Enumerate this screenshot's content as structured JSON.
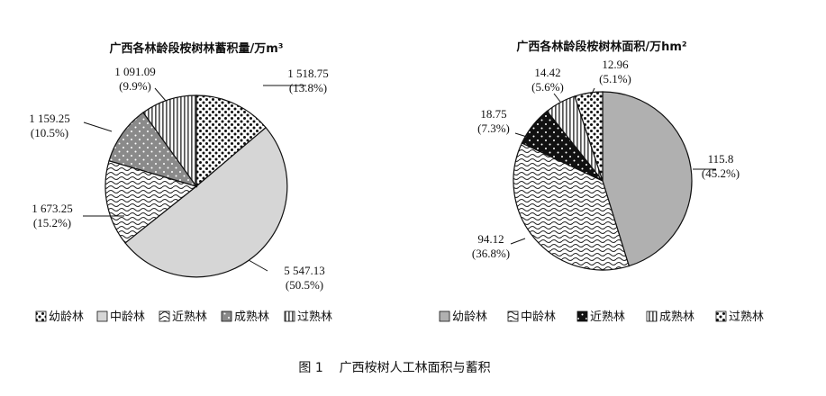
{
  "figure_caption": "图 1    广西桉树人工林面积与蓄积",
  "chart_data": [
    {
      "type": "pie",
      "title": "广西各林龄段桉树林蓄积量/万m³",
      "unit": "万m³",
      "legend_position": "bottom",
      "slices": [
        {
          "name": "幼龄林",
          "value": 1518.75,
          "value_label": "1 518.75",
          "percent_label": "(13.8%)",
          "color": "#ffffff",
          "pattern": "dots"
        },
        {
          "name": "中龄林",
          "value": 5547.13,
          "value_label": "5 547.13",
          "percent_label": "(50.5%)",
          "color": "#d6d6d6",
          "pattern": "solid"
        },
        {
          "name": "近熟林",
          "value": 1673.25,
          "value_label": "1 673.25",
          "percent_label": "(15.2%)",
          "color": "#ffffff",
          "pattern": "waves"
        },
        {
          "name": "成熟林",
          "value": 1159.25,
          "value_label": "1 159.25",
          "percent_label": "(10.5%)",
          "color": "#8a8a8a",
          "pattern": "dots-on-gray"
        },
        {
          "name": "过熟林",
          "value": 1091.09,
          "value_label": "1 091.09",
          "percent_label": "(9.9%)",
          "color": "#ffffff",
          "pattern": "vertical-stripes"
        }
      ]
    },
    {
      "type": "pie",
      "title": "广西各林龄段桉树林面积/万hm²",
      "unit": "万hm²",
      "legend_position": "bottom",
      "slices": [
        {
          "name": "幼龄林",
          "value": 115.8,
          "value_label": "115.8",
          "percent_label": "(45.2%)",
          "color": "#b0b0b0",
          "pattern": "solid"
        },
        {
          "name": "中龄林",
          "value": 94.12,
          "value_label": "94.12",
          "percent_label": "(36.8%)",
          "color": "#ffffff",
          "pattern": "waves"
        },
        {
          "name": "近熟林",
          "value": 18.75,
          "value_label": "18.75",
          "percent_label": "(7.3%)",
          "color": "#111111",
          "pattern": "dots-on-black"
        },
        {
          "name": "成熟林",
          "value": 14.42,
          "value_label": "14.42",
          "percent_label": "(5.6%)",
          "color": "#ffffff",
          "pattern": "vertical-stripes"
        },
        {
          "name": "过熟林",
          "value": 12.96,
          "value_label": "12.96",
          "percent_label": "(5.1%)",
          "color": "#ffffff",
          "pattern": "dots"
        }
      ]
    }
  ]
}
